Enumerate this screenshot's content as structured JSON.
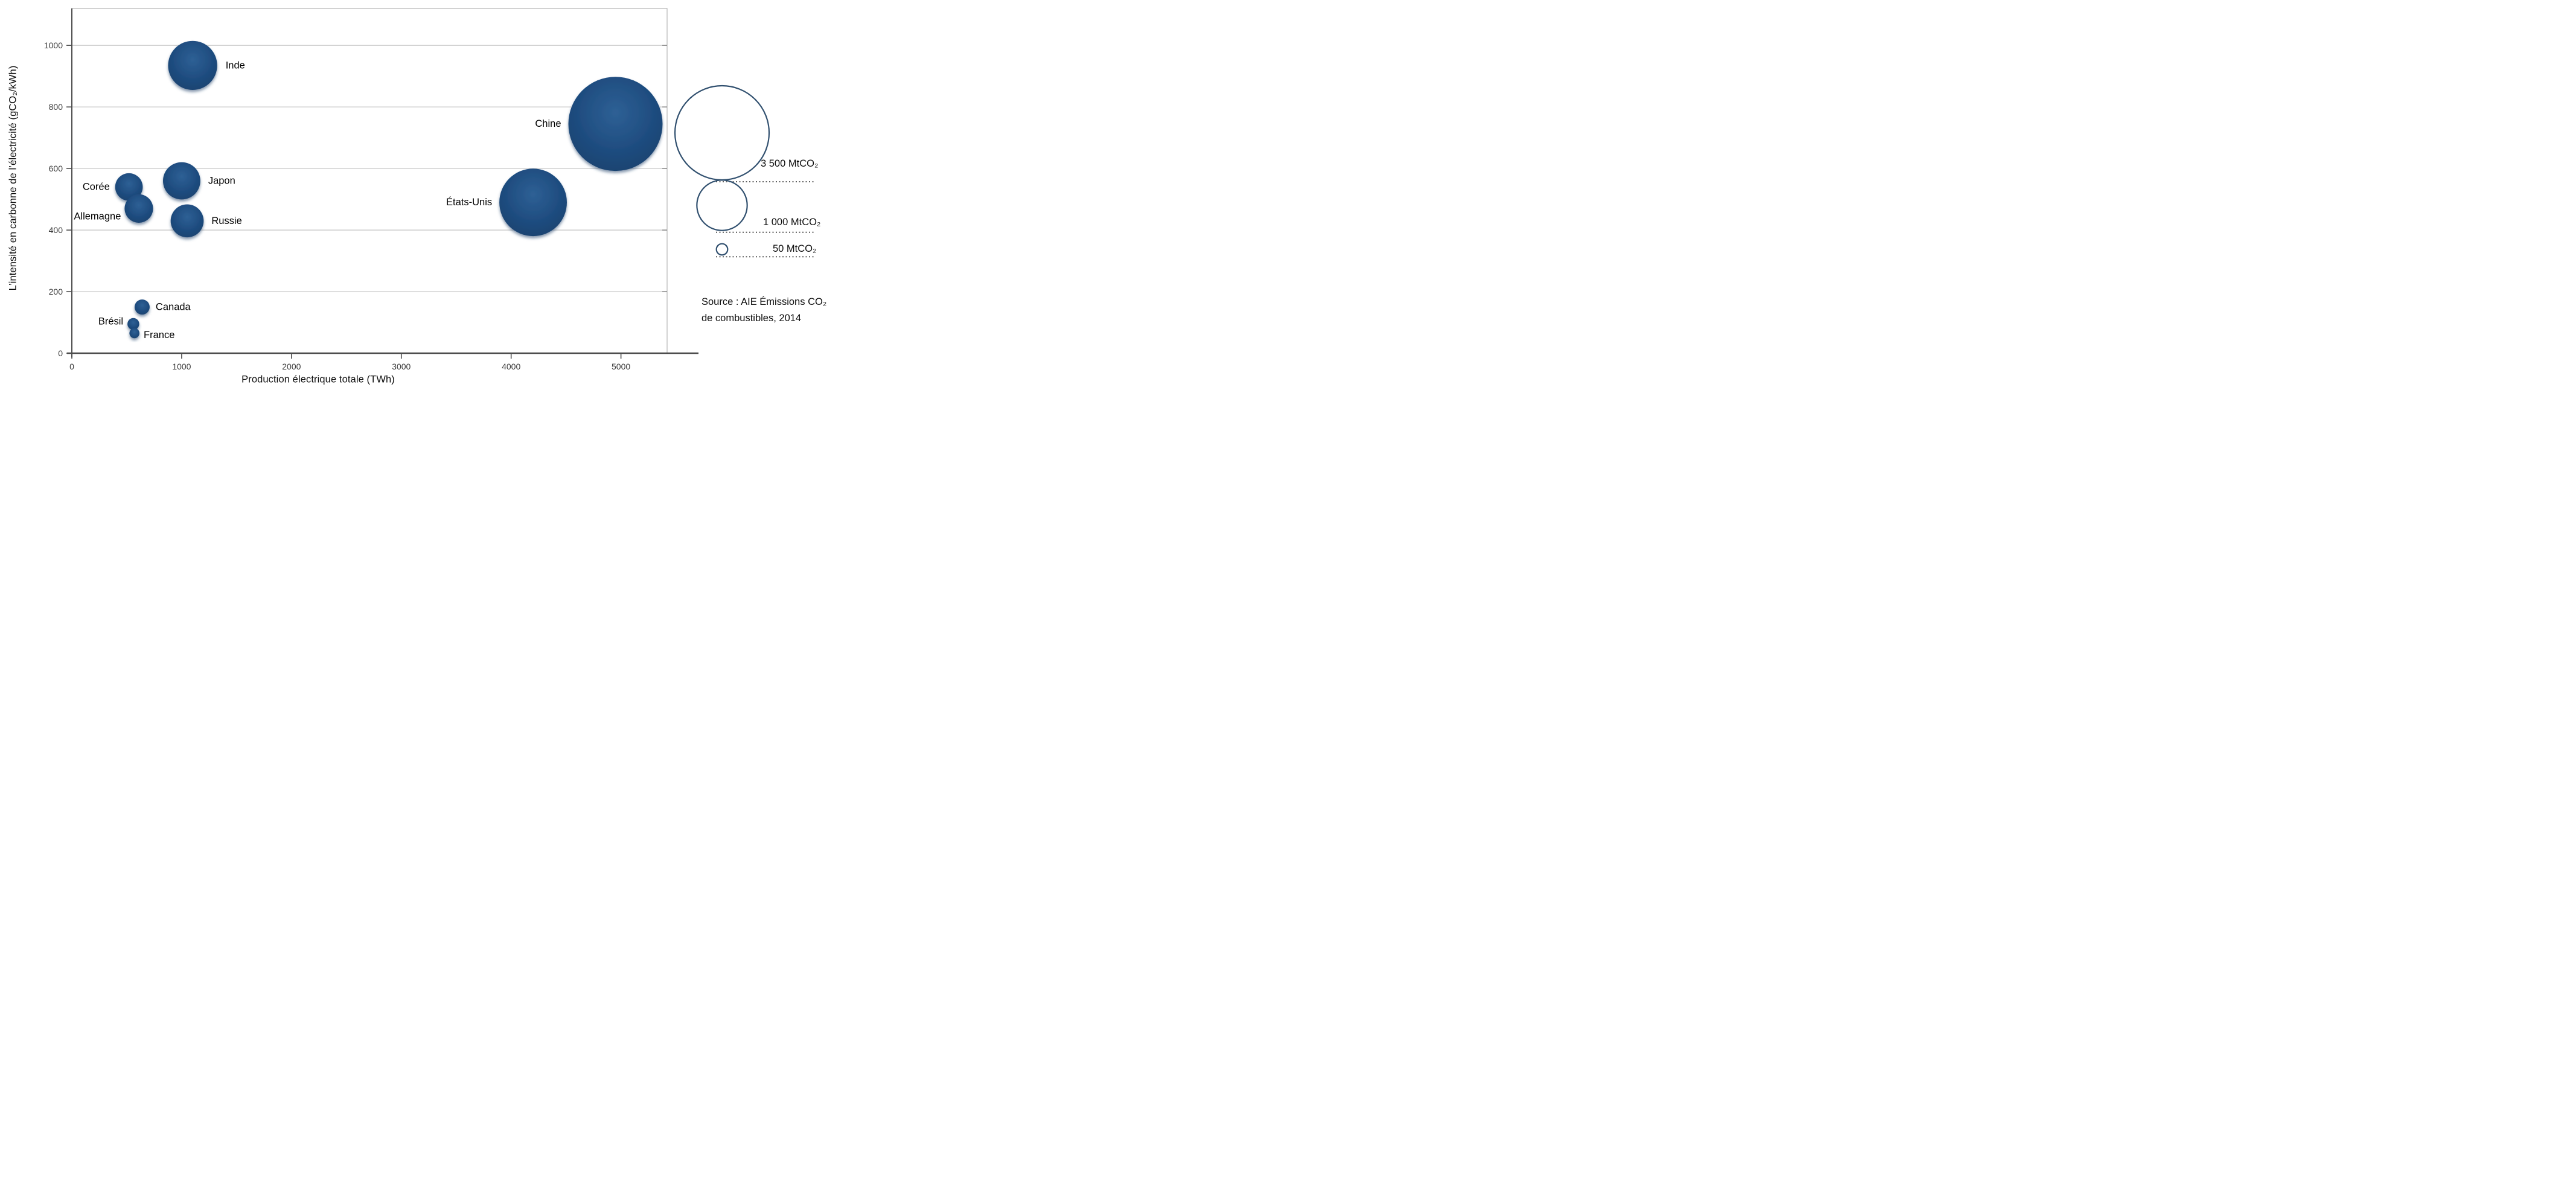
{
  "chart_data": {
    "type": "scatter",
    "subtype": "bubble",
    "title": "",
    "xlabel": "Production électrique totale (TWh)",
    "ylabel": "L’intensité en carbonne de l’électricité (gCO₂/kWh)",
    "x_ticks": [
      0,
      1000,
      2000,
      3000,
      4000,
      5000
    ],
    "y_ticks": [
      0,
      200,
      400,
      600,
      800,
      1000
    ],
    "xlim": [
      0,
      5420
    ],
    "ylim": [
      0,
      1120
    ],
    "grid": "horizontal",
    "legend_position": "right",
    "size_unit": "MtCO₂",
    "points": [
      {
        "name": "Inde",
        "slug": "inde",
        "x": 1100,
        "y": 935,
        "size_mtco2": 950,
        "label_anchor": "start",
        "label_gap": 14,
        "label_dy": 0
      },
      {
        "name": "Chine",
        "slug": "chine",
        "x": 4950,
        "y": 745,
        "size_mtco2": 3500,
        "label_anchor": "end",
        "label_gap": 12,
        "label_dy": 0
      },
      {
        "name": "États-Unis",
        "slug": "etats-unis",
        "x": 4200,
        "y": 490,
        "size_mtco2": 1800,
        "label_anchor": "end",
        "label_gap": 12,
        "label_dy": 0
      },
      {
        "name": "Japon",
        "slug": "japon",
        "x": 1000,
        "y": 560,
        "size_mtco2": 550,
        "label_anchor": "start",
        "label_gap": 13,
        "label_dy": 0
      },
      {
        "name": "Russie",
        "slug": "russie",
        "x": 1050,
        "y": 430,
        "size_mtco2": 430,
        "label_anchor": "start",
        "label_gap": 13,
        "label_dy": 0
      },
      {
        "name": "Corée",
        "slug": "coree",
        "x": 520,
        "y": 540,
        "size_mtco2": 300,
        "label_anchor": "end",
        "label_gap": 9,
        "label_dy": 0
      },
      {
        "name": "Allemagne",
        "slug": "allemagne",
        "x": 610,
        "y": 470,
        "size_mtco2": 320,
        "label_anchor": "end",
        "label_gap": 6,
        "label_dy": 13
      },
      {
        "name": "Canada",
        "slug": "canada",
        "x": 640,
        "y": 150,
        "size_mtco2": 90,
        "label_anchor": "start",
        "label_gap": 10,
        "label_dy": 0
      },
      {
        "name": "Brésil",
        "slug": "bresil",
        "x": 560,
        "y": 95,
        "size_mtco2": 55,
        "label_anchor": "end",
        "label_gap": 7,
        "label_dy": -4
      },
      {
        "name": "France",
        "slug": "france",
        "x": 570,
        "y": 65,
        "size_mtco2": 40,
        "label_anchor": "start",
        "label_gap": 7,
        "label_dy": 3
      }
    ],
    "size_legend": {
      "cx": 1196,
      "line_end_x": 1348,
      "items": [
        {
          "label": "3 500 MtCO₂",
          "value": 3500,
          "cy": 220,
          "label_x": 1260,
          "label_cy": 271
        },
        {
          "label": "1 000 MtCO₂",
          "value": 1000,
          "cy": 340,
          "label_x": 1264,
          "label_cy": 368
        },
        {
          "label": "50 MtCO₂",
          "value": 50,
          "cy": 413,
          "label_x": 1280,
          "label_cy": 412
        }
      ]
    },
    "source_lines": [
      "Source : AIE Émissions CO₂",
      "de combustibles, 2014"
    ]
  },
  "layout_colors": {
    "bubble_center": "#2e6095",
    "bubble_mid": "#1f4d80",
    "bubble_edge": "#173f6b",
    "bubble_shadow": "#2b4a6e",
    "legend_circle_stroke": "#31506f",
    "gridline": "#c9c9c9",
    "frame": "#b3b3b3",
    "axis_line": "#4d4d4d",
    "tick_text": "#3a3a3a",
    "label_text": "#000000",
    "leader_line": "#4a4a4a"
  }
}
